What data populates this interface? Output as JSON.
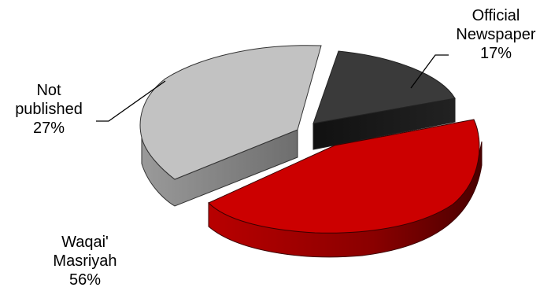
{
  "chart_data": {
    "type": "pie",
    "title": "",
    "slices": [
      {
        "label_lines": [
          "Official",
          "Newspaper"
        ],
        "value": 17,
        "percent_label": "17%",
        "color": "#3a3a3a"
      },
      {
        "label_lines": [
          "Waqai'",
          "Masriyah"
        ],
        "value": 56,
        "percent_label": "56%",
        "color": "#cc0000"
      },
      {
        "label_lines": [
          "Not",
          "published"
        ],
        "value": 27,
        "percent_label": "27%",
        "color": "#c2c2c2"
      }
    ],
    "style": "3d-exploded",
    "legend": "none"
  }
}
